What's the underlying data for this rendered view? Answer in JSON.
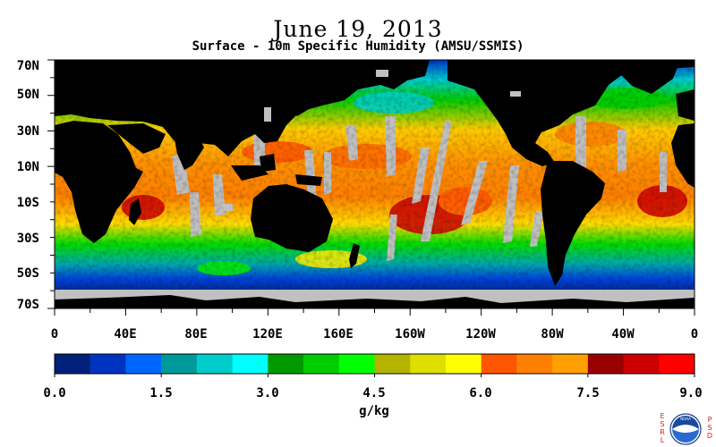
{
  "title": "June 19, 2013",
  "subtitle": "Surface - 10m Specific Humidity (AMSU/SSMIS)",
  "map": {
    "lat_labels": [
      "70N",
      "50N",
      "30N",
      "10N",
      "10S",
      "30S",
      "50S",
      "70S"
    ],
    "lon_labels": [
      "0",
      "40E",
      "80E",
      "120E",
      "160E",
      "160W",
      "120W",
      "80W",
      "40W",
      "0"
    ]
  },
  "colorbar": {
    "colors": [
      "#00207a",
      "#0033c0",
      "#0066ff",
      "#00999a",
      "#00cccc",
      "#00ffff",
      "#009900",
      "#00cc00",
      "#00ff00",
      "#b3b300",
      "#dede00",
      "#ffff00",
      "#ff5500",
      "#ff8000",
      "#ffa000",
      "#990000",
      "#cc0000",
      "#ff0000"
    ],
    "tick_labels": [
      "0.0",
      "1.5",
      "3.0",
      "4.5",
      "6.0",
      "7.5",
      "9.0"
    ],
    "units": "g/kg",
    "range": [
      0.0,
      9.0
    ]
  },
  "colors": {
    "land": "#000000",
    "no_data": "#c0c0c0",
    "background": "#ffffff"
  },
  "logo": {
    "side_text_left": "ESRL",
    "side_text_right": "PSD",
    "seal_text": "NOAA"
  }
}
